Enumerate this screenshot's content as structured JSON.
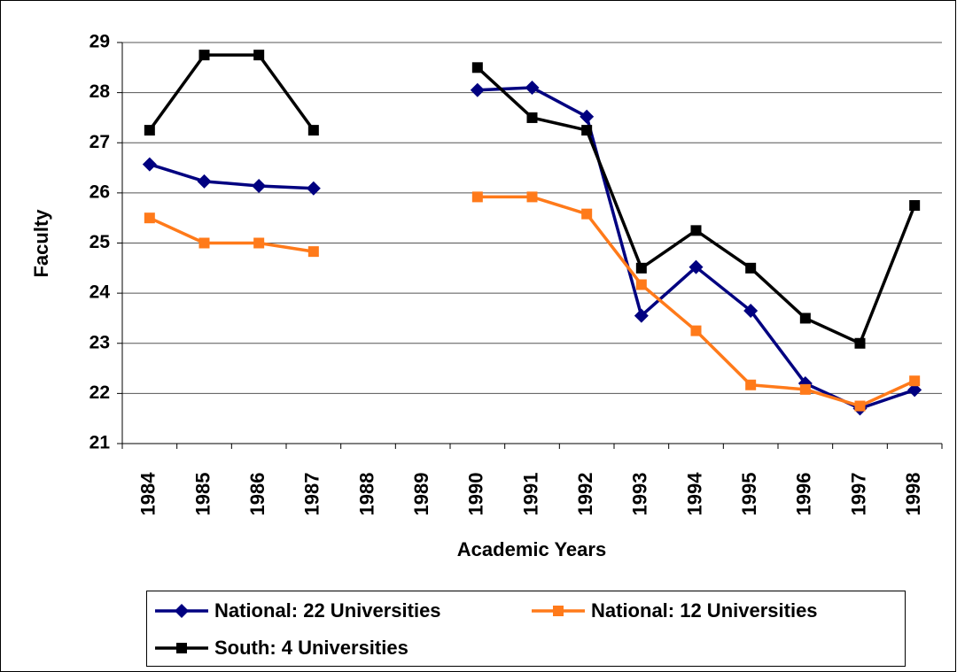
{
  "chart_data": {
    "type": "line",
    "y_label": "Faculty",
    "x_label": "Academic Years",
    "categories": [
      "1984",
      "1985",
      "1986",
      "1987",
      "1988",
      "1989",
      "1990",
      "1991",
      "1992",
      "1993",
      "1994",
      "1995",
      "1996",
      "1997",
      "1998"
    ],
    "ylim": [
      21,
      29
    ],
    "yticks": [
      21,
      22,
      23,
      24,
      25,
      26,
      27,
      28,
      29
    ],
    "grid": true,
    "series": [
      {
        "name": "National: 22 Universities",
        "color": "#000080",
        "marker": "diamond",
        "values": [
          26.57,
          26.23,
          26.14,
          26.09,
          null,
          null,
          28.05,
          28.1,
          27.52,
          23.55,
          24.52,
          23.65,
          22.2,
          21.7,
          22.07
        ]
      },
      {
        "name": "National: 12 Universities",
        "color": "#ff7a1a",
        "marker": "square",
        "values": [
          25.5,
          25.0,
          25.0,
          24.83,
          null,
          null,
          25.92,
          25.92,
          25.58,
          24.17,
          23.25,
          22.17,
          22.08,
          21.75,
          22.25
        ]
      },
      {
        "name": "South: 4 Universities",
        "color": "#000000",
        "marker": "square",
        "values": [
          27.25,
          28.75,
          28.75,
          27.25,
          null,
          null,
          28.5,
          27.5,
          27.25,
          24.5,
          25.25,
          24.5,
          23.5,
          23.0,
          25.75
        ]
      }
    ]
  }
}
